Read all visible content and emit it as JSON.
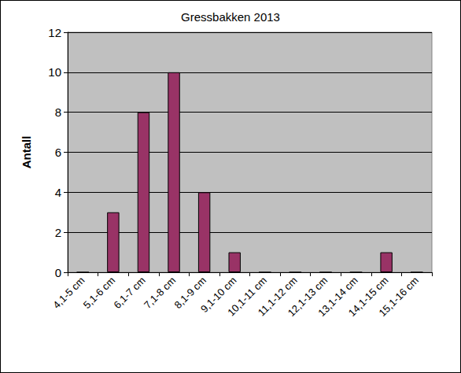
{
  "chart_data": {
    "type": "bar",
    "title": "Gressbakken 2013",
    "ylabel": "Antall",
    "categories": [
      "4,1-5 cm",
      "5,1-6 cm",
      "6,1-7 cm",
      "7,1-8 cm",
      "8,1-9 cm",
      "9,1-10 cm",
      "10,1-11 cm",
      "11,1-12 cm",
      "12,1-13 cm",
      "13,1-14 cm",
      "14,1-15 cm",
      "15,1-16 cm"
    ],
    "values": [
      0,
      3,
      8,
      10,
      4,
      1,
      0,
      0,
      0,
      0,
      1,
      0
    ],
    "color": "#993366",
    "ylim": [
      0,
      12
    ],
    "yticks": [
      0,
      2,
      4,
      6,
      8,
      10,
      12
    ],
    "grid": true
  }
}
